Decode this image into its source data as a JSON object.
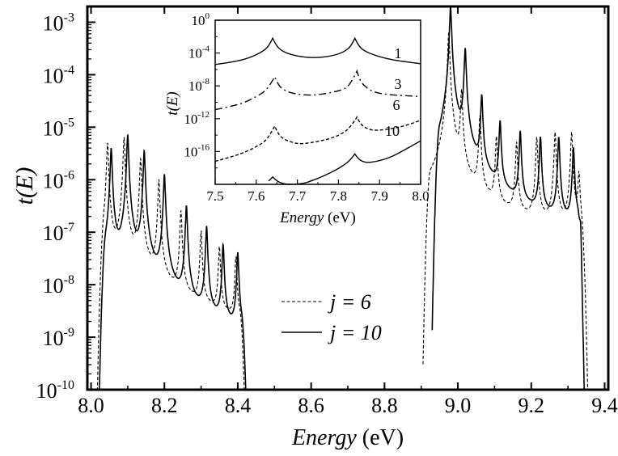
{
  "chart_data": [
    {
      "type": "line",
      "title": "",
      "xlabel_italic": "Energy",
      "xlabel_unit": "(eV)",
      "ylabel": "t(E)",
      "yscale": "log",
      "xlim": [
        7.99,
        9.41
      ],
      "ylim_log10": [
        -10,
        -2.7
      ],
      "xticks": [
        "8.0",
        "8.2",
        "8.4",
        "8.6",
        "8.8",
        "9.0",
        "9.2",
        "9.4"
      ],
      "yticks": [
        {
          "base": "10",
          "exp": "-3"
        },
        {
          "base": "10",
          "exp": "-4"
        },
        {
          "base": "10",
          "exp": "-5"
        },
        {
          "base": "10",
          "exp": "-6"
        },
        {
          "base": "10",
          "exp": "-7"
        },
        {
          "base": "10",
          "exp": "-8"
        },
        {
          "base": "10",
          "exp": "-9"
        },
        {
          "base": "10",
          "exp": "-10"
        }
      ],
      "legend": {
        "placement": "center-bottom",
        "entries": [
          {
            "name": "j = 6",
            "style": "dashed"
          },
          {
            "name": "j = 10",
            "style": "solid"
          }
        ]
      },
      "series": [
        {
          "name": "j = 6",
          "style": "dashed",
          "bands": [
            {
              "from": 8.015,
              "to": 8.425,
              "base_log10": [
                -7.9,
                -8.9
              ],
              "peaks": [
                8.045,
                8.09,
                8.135,
                8.185,
                8.245,
                8.3,
                8.35,
                8.395
              ],
              "peak_log10": [
                -5.3,
                -5.2,
                -5.6,
                -6.0,
                -6.6,
                -7.0,
                -7.3,
                -7.5
              ]
            },
            {
              "from": 8.905,
              "to": 9.355,
              "base_log10": [
                -6.5,
                -7.2
              ],
              "peaks": [
                8.975,
                9.01,
                9.06,
                9.105,
                9.16,
                9.215,
                9.265,
                9.31,
                9.33
              ],
              "peak_log10": [
                -3.2,
                -4.3,
                -4.8,
                -5.2,
                -5.3,
                -5.2,
                -5.1,
                -5.1,
                -5.9
              ]
            }
          ]
        },
        {
          "name": "j = 10",
          "style": "solid",
          "bands": [
            {
              "from": 8.02,
              "to": 8.43,
              "base_log10": [
                -7.9,
                -9.7
              ],
              "peaks": [
                8.055,
                8.1,
                8.145,
                8.2,
                8.26,
                8.315,
                8.36,
                8.4
              ],
              "peak_log10": [
                -5.4,
                -5.15,
                -5.45,
                -5.9,
                -6.5,
                -6.9,
                -7.25,
                -7.4
              ]
            },
            {
              "from": 8.93,
              "to": 9.345,
              "base_log10": [
                -6.6,
                -7.7
              ],
              "peaks": [
                8.98,
                9.02,
                9.065,
                9.115,
                9.17,
                9.225,
                9.275,
                9.315,
                9.335
              ],
              "peak_log10": [
                -2.7,
                -3.5,
                -4.4,
                -4.9,
                -5.1,
                -5.2,
                -5.2,
                -5.4,
                -6.1
              ]
            }
          ]
        }
      ]
    },
    {
      "type": "line",
      "inset": true,
      "xlabel_italic": "Energy",
      "xlabel_unit": "(eV)",
      "ylabel": "t(E)",
      "yscale": "log",
      "xlim": [
        7.5,
        8.0
      ],
      "ylim_log10": [
        -20,
        0
      ],
      "xticks": [
        "7.5",
        "7.6",
        "7.7",
        "7.8",
        "7.9",
        "8.0"
      ],
      "yticks": [
        {
          "base": "10",
          "exp": "0"
        },
        {
          "base": "10",
          "exp": "-4"
        },
        {
          "base": "10",
          "exp": "-8"
        },
        {
          "base": "10",
          "exp": "-12"
        },
        {
          "base": "10",
          "exp": "-16"
        }
      ],
      "series": [
        {
          "name": "1",
          "style": "solid",
          "x": [
            7.5,
            7.56,
            7.6,
            7.625,
            7.64,
            7.655,
            7.68,
            7.72,
            7.76,
            7.8,
            7.825,
            7.84,
            7.855,
            7.88,
            7.93,
            8.0
          ],
          "log10_y": [
            -5.4,
            -4.9,
            -4.2,
            -3.4,
            -2.2,
            -3.4,
            -4.1,
            -4.5,
            -4.5,
            -4.1,
            -3.4,
            -2.2,
            -3.4,
            -4.1,
            -4.8,
            -5.3
          ]
        },
        {
          "name": "3",
          "style": "dashdot",
          "x": [
            7.5,
            7.56,
            7.6,
            7.625,
            7.645,
            7.66,
            7.69,
            7.74,
            7.8,
            7.825,
            7.845,
            7.86,
            7.9,
            8.0
          ],
          "log10_y": [
            -10.9,
            -10.2,
            -9.3,
            -8.4,
            -6.9,
            -8.2,
            -8.9,
            -9.1,
            -8.6,
            -7.9,
            -6.2,
            -7.8,
            -8.9,
            -9.3
          ]
        },
        {
          "name": "6",
          "style": "dashed",
          "x": [
            7.5,
            7.56,
            7.6,
            7.625,
            7.645,
            7.66,
            7.69,
            7.72,
            7.78,
            7.82,
            7.845,
            7.86,
            7.89,
            7.95,
            8.0
          ],
          "log10_y": [
            -17.2,
            -16.3,
            -15.4,
            -14.5,
            -12.9,
            -14.2,
            -14.9,
            -15.0,
            -14.4,
            -13.4,
            -11.8,
            -12.9,
            -13.4,
            -13.0,
            -12.2
          ]
        },
        {
          "name": "10",
          "style": "solid",
          "x": [
            7.63,
            7.64,
            7.655,
            7.68,
            7.72,
            7.78,
            7.82,
            7.84,
            7.855,
            7.88,
            7.93,
            8.0
          ],
          "log10_y": [
            -19.6,
            -19.1,
            -19.7,
            -20.0,
            -19.8,
            -18.6,
            -17.4,
            -16.3,
            -17.1,
            -17.3,
            -16.6,
            -14.7
          ]
        }
      ],
      "curve_labels": [
        "1",
        "3",
        "6",
        "10"
      ]
    }
  ]
}
